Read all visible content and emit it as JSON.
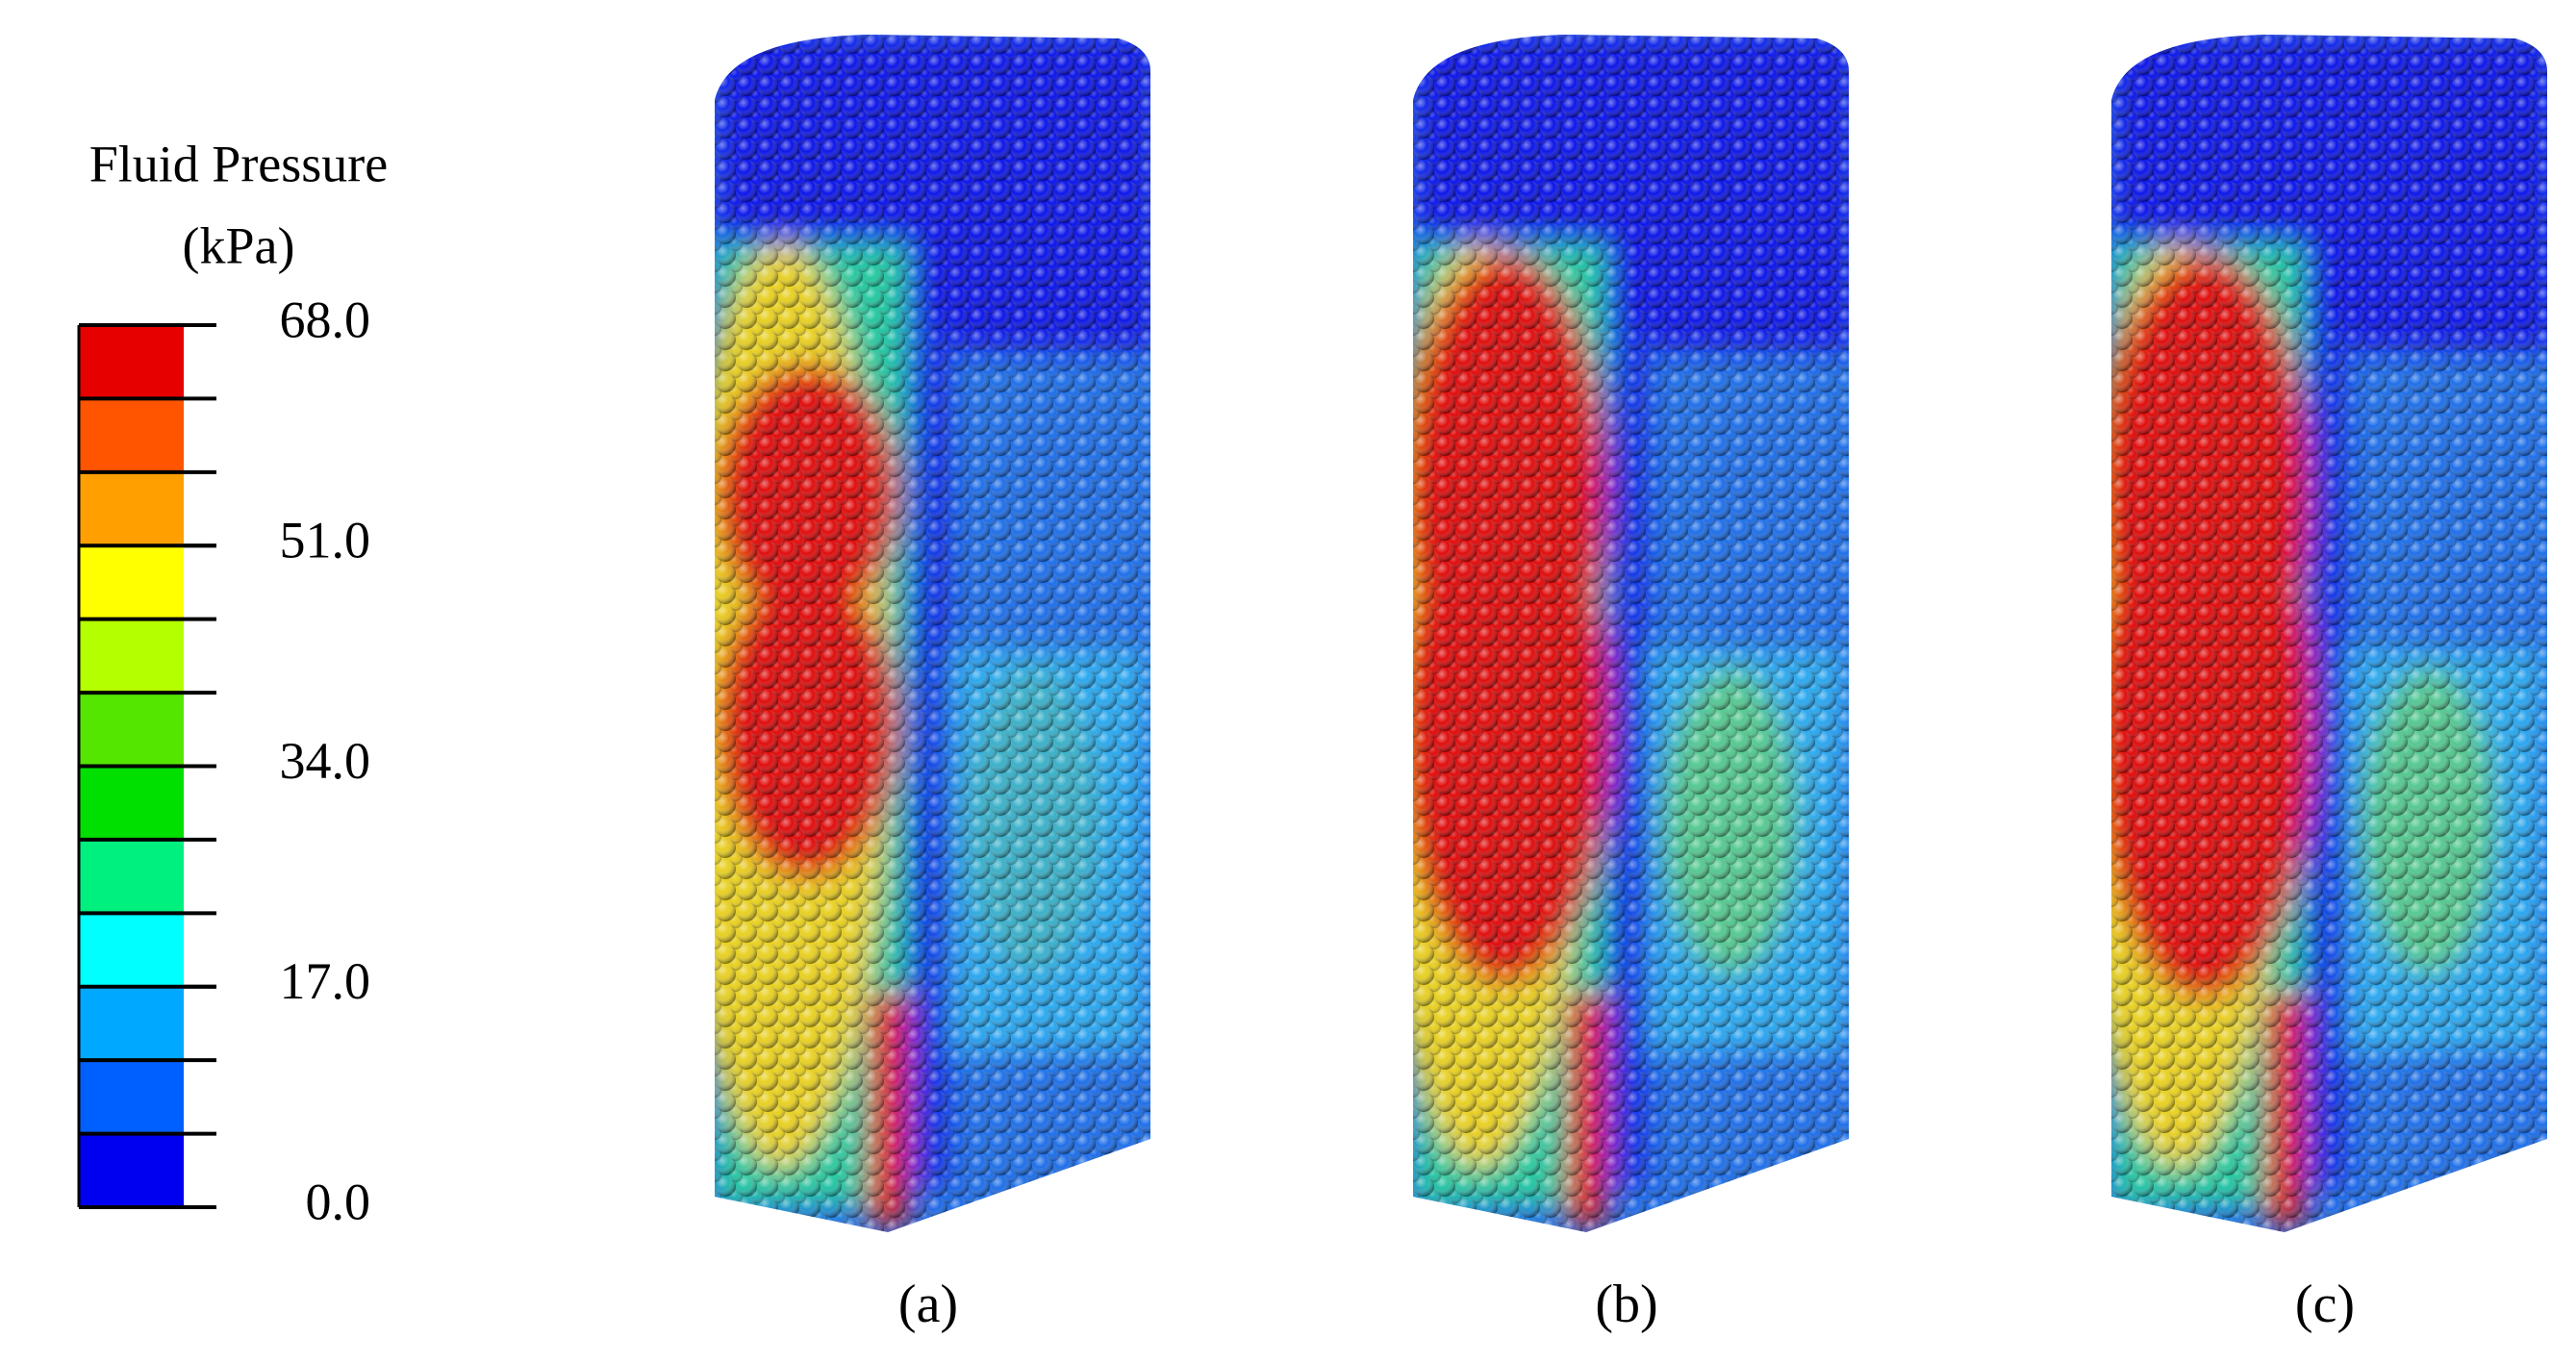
{
  "legend": {
    "title": [
      "Fluid Pressure",
      "(kPa)"
    ],
    "colors": [
      "#e60000",
      "#ff5500",
      "#ffa000",
      "#ffff00",
      "#b4ff00",
      "#55e600",
      "#00e000",
      "#00f080",
      "#00ffff",
      "#00a8ff",
      "#0060ff",
      "#0000f0"
    ],
    "ticks": [
      {
        "value": 68,
        "label": "68.0"
      },
      {
        "value": 51,
        "label": "51.0"
      },
      {
        "value": 34,
        "label": "34.0"
      },
      {
        "value": 17,
        "label": "17.0"
      },
      {
        "value": 0,
        "label": "0.0"
      }
    ]
  },
  "panels": [
    {
      "label": "(a)"
    },
    {
      "label": "(b)"
    },
    {
      "label": "(c)"
    }
  ]
}
